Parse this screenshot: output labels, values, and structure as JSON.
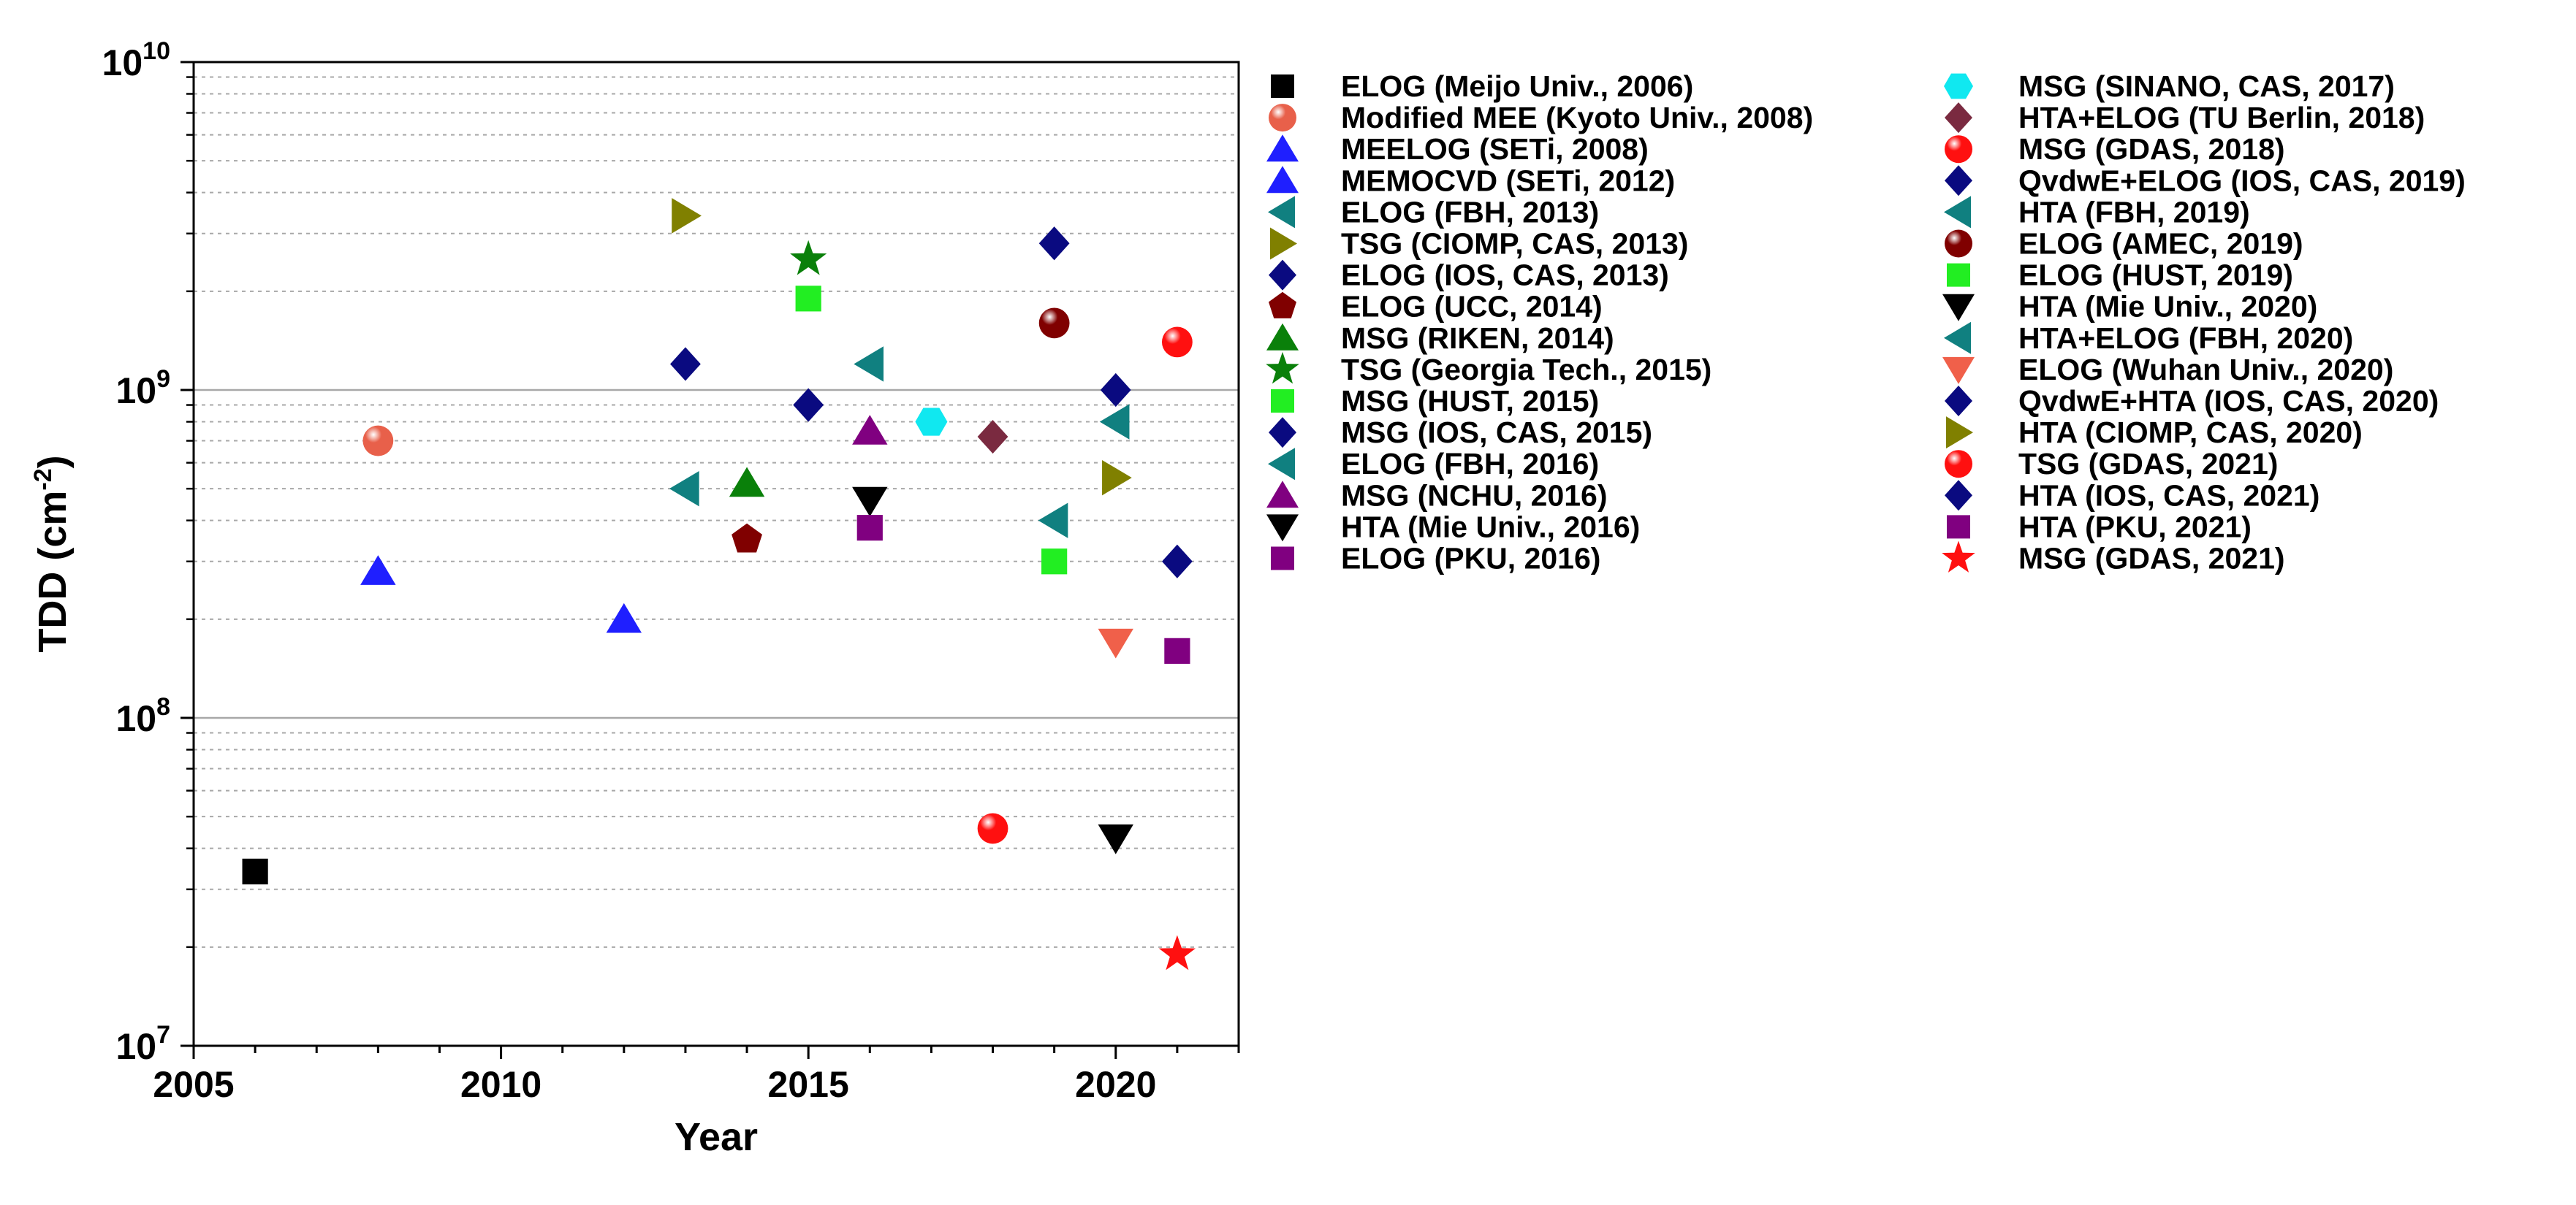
{
  "chart_data": {
    "type": "scatter",
    "title": "",
    "xlabel": "Year",
    "ylabel_main": "TDD (cm",
    "ylabel_sup": "-2",
    "ylabel_close": ")",
    "xlim": [
      2005,
      2022
    ],
    "ylim": [
      10000000,
      10000000000
    ],
    "yscale": "log",
    "x_ticks": [
      {
        "value": 2005,
        "label": "2005"
      },
      {
        "value": 2010,
        "label": "2010"
      },
      {
        "value": 2015,
        "label": "2015"
      },
      {
        "value": 2020,
        "label": "2020"
      }
    ],
    "y_ticks": [
      {
        "exp": 7,
        "base": "10",
        "sup": "7"
      },
      {
        "exp": 8,
        "base": "10",
        "sup": "8"
      },
      {
        "exp": 9,
        "base": "10",
        "sup": "9"
      },
      {
        "exp": 10,
        "base": "10",
        "sup": "10"
      }
    ],
    "legend_position": "right",
    "series": [
      {
        "name": "ELOG (Meijo Univ., 2006)",
        "marker": "square",
        "color": "#000000",
        "x": 2006,
        "y": 34000000
      },
      {
        "name": "Modified MEE (Kyoto Univ., 2008)",
        "marker": "sphere",
        "color": "#e8604a",
        "x": 2008,
        "y": 700000000
      },
      {
        "name": "MEELOG (SETi, 2008)",
        "marker": "triangle-up",
        "color": "#1f1fff",
        "x": 2008,
        "y": 280000000
      },
      {
        "name": "MEMOCVD (SETi, 2012)",
        "marker": "triangle-up",
        "color": "#1f1fff",
        "x": 2012,
        "y": 200000000
      },
      {
        "name": "ELOG (FBH, 2013)",
        "marker": "triangle-left",
        "color": "#108080",
        "x": 2013,
        "y": 500000000
      },
      {
        "name": "TSG (CIOMP, CAS, 2013)",
        "marker": "triangle-right",
        "color": "#808000",
        "x": 2013,
        "y": 3400000000
      },
      {
        "name": "ELOG (IOS, CAS, 2013)",
        "marker": "diamond",
        "color": "#0a0a80",
        "x": 2013,
        "y": 1200000000
      },
      {
        "name": "ELOG (UCC, 2014)",
        "marker": "pentagon",
        "color": "#800000",
        "x": 2014,
        "y": 350000000
      },
      {
        "name": "MSG (RIKEN, 2014)",
        "marker": "triangle-up",
        "color": "#0a800a",
        "x": 2014,
        "y": 520000000
      },
      {
        "name": "TSG (Georgia Tech., 2015)",
        "marker": "star",
        "color": "#0a800a",
        "x": 2015,
        "y": 2500000000
      },
      {
        "name": "MSG (HUST, 2015)",
        "marker": "square",
        "color": "#22ee22",
        "x": 2015,
        "y": 1900000000
      },
      {
        "name": "MSG (IOS, CAS, 2015)",
        "marker": "diamond",
        "color": "#0a0a80",
        "x": 2015,
        "y": 900000000
      },
      {
        "name": "ELOG (FBH, 2016)",
        "marker": "triangle-left",
        "color": "#108080",
        "x": 2016,
        "y": 1200000000
      },
      {
        "name": "MSG (NCHU, 2016)",
        "marker": "triangle-up",
        "color": "#800080",
        "x": 2016,
        "y": 750000000
      },
      {
        "name": "HTA (Mie Univ., 2016)",
        "marker": "triangle-down",
        "color": "#000000",
        "x": 2016,
        "y": 460000000
      },
      {
        "name": "ELOG (PKU, 2016)",
        "marker": "square",
        "color": "#800080",
        "x": 2016,
        "y": 380000000
      },
      {
        "name": "MSG (SINANO, CAS, 2017)",
        "marker": "hexagon",
        "color": "#10e8f0",
        "x": 2017,
        "y": 800000000
      },
      {
        "name": "HTA+ELOG (TU Berlin, 2018)",
        "marker": "diamond",
        "color": "#7a2a40",
        "x": 2018,
        "y": 720000000
      },
      {
        "name": "MSG (GDAS, 2018)",
        "marker": "sphere",
        "color": "#ff1010",
        "x": 2018,
        "y": 46000000
      },
      {
        "name": "QvdwE+ELOG (IOS, CAS, 2019)",
        "marker": "diamond",
        "color": "#0a0a80",
        "x": 2019,
        "y": 2800000000
      },
      {
        "name": "HTA (FBH, 2019)",
        "marker": "triangle-left",
        "color": "#108080",
        "x": 2019,
        "y": 400000000
      },
      {
        "name": "ELOG (AMEC, 2019)",
        "marker": "sphere",
        "color": "#800000",
        "x": 2019,
        "y": 1600000000
      },
      {
        "name": "ELOG (HUST, 2019)",
        "marker": "square",
        "color": "#22ee22",
        "x": 2019,
        "y": 300000000
      },
      {
        "name": "HTA (Mie Univ., 2020)",
        "marker": "triangle-down",
        "color": "#000000",
        "x": 2020,
        "y": 43000000
      },
      {
        "name": "HTA+ELOG (FBH, 2020)",
        "marker": "triangle-left",
        "color": "#108080",
        "x": 2020,
        "y": 800000000
      },
      {
        "name": "ELOG (Wuhan Univ., 2020)",
        "marker": "triangle-down",
        "color": "#f0604a",
        "x": 2020,
        "y": 170000000
      },
      {
        "name": "QvdwE+HTA (IOS, CAS, 2020)",
        "marker": "diamond",
        "color": "#0a0a80",
        "x": 2020,
        "y": 1000000000
      },
      {
        "name": "HTA (CIOMP, CAS, 2020)",
        "marker": "triangle-right",
        "color": "#808000",
        "x": 2020,
        "y": 540000000
      },
      {
        "name": "TSG (GDAS, 2021)",
        "marker": "sphere",
        "color": "#ff1010",
        "x": 2021,
        "y": 1400000000
      },
      {
        "name": "HTA (IOS, CAS, 2021)",
        "marker": "diamond",
        "color": "#0a0a80",
        "x": 2021,
        "y": 300000000
      },
      {
        "name": "HTA (PKU, 2021)",
        "marker": "square",
        "color": "#800080",
        "x": 2021,
        "y": 160000000
      },
      {
        "name": "MSG (GDAS, 2021)",
        "marker": "star",
        "color": "#ff1010",
        "x": 2021,
        "y": 19000000
      }
    ]
  }
}
